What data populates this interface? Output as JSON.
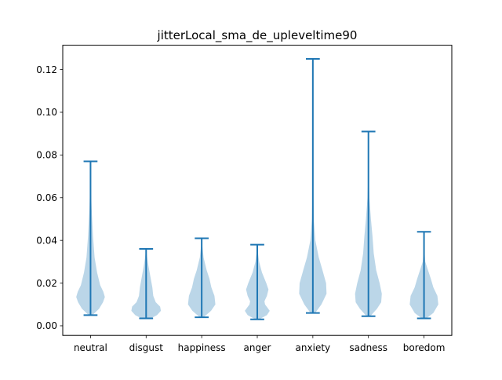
{
  "chart_data": {
    "type": "violin",
    "title": "jitterLocal_sma_de_upleveltime90",
    "xlabel": "",
    "ylabel": "",
    "ylim": [
      -0.0045,
      0.1314
    ],
    "yticks": [
      0.0,
      0.02,
      0.04,
      0.06,
      0.08,
      0.1,
      0.12
    ],
    "ytick_labels": [
      "0.00",
      "0.02",
      "0.04",
      "0.06",
      "0.08",
      "0.10",
      "0.12"
    ],
    "categories": [
      "neutral",
      "disgust",
      "happiness",
      "anger",
      "anxiety",
      "sadness",
      "boredom"
    ],
    "series": [
      {
        "min": 0.005,
        "max": 0.077,
        "halfwidth": 0.28,
        "profile": [
          [
            0.005,
            0.12
          ],
          [
            0.008,
            0.55
          ],
          [
            0.011,
            0.8
          ],
          [
            0.0135,
            0.92
          ],
          [
            0.016,
            0.82
          ],
          [
            0.019,
            0.62
          ],
          [
            0.025,
            0.42
          ],
          [
            0.032,
            0.26
          ],
          [
            0.042,
            0.16
          ],
          [
            0.055,
            0.07
          ],
          [
            0.065,
            0.025
          ],
          [
            0.077,
            0.003
          ]
        ]
      },
      {
        "min": 0.0035,
        "max": 0.036,
        "halfwidth": 0.28,
        "profile": [
          [
            0.0035,
            0.3
          ],
          [
            0.005,
            0.7
          ],
          [
            0.007,
            0.95
          ],
          [
            0.009,
            0.9
          ],
          [
            0.011,
            0.62
          ],
          [
            0.014,
            0.46
          ],
          [
            0.018,
            0.4
          ],
          [
            0.022,
            0.3
          ],
          [
            0.028,
            0.15
          ],
          [
            0.033,
            0.05
          ],
          [
            0.036,
            0.005
          ]
        ]
      },
      {
        "min": 0.004,
        "max": 0.041,
        "halfwidth": 0.28,
        "profile": [
          [
            0.004,
            0.12
          ],
          [
            0.007,
            0.6
          ],
          [
            0.01,
            0.88
          ],
          [
            0.014,
            0.82
          ],
          [
            0.018,
            0.62
          ],
          [
            0.022,
            0.5
          ],
          [
            0.026,
            0.32
          ],
          [
            0.032,
            0.12
          ],
          [
            0.038,
            0.03
          ],
          [
            0.041,
            0.003
          ]
        ]
      },
      {
        "min": 0.003,
        "max": 0.038,
        "halfwidth": 0.28,
        "profile": [
          [
            0.003,
            0.12
          ],
          [
            0.005,
            0.62
          ],
          [
            0.007,
            0.8
          ],
          [
            0.01,
            0.5
          ],
          [
            0.0115,
            0.46
          ],
          [
            0.014,
            0.62
          ],
          [
            0.017,
            0.72
          ],
          [
            0.02,
            0.58
          ],
          [
            0.025,
            0.3
          ],
          [
            0.03,
            0.12
          ],
          [
            0.035,
            0.03
          ],
          [
            0.038,
            0.003
          ]
        ]
      },
      {
        "min": 0.006,
        "max": 0.125,
        "halfwidth": 0.28,
        "profile": [
          [
            0.006,
            0.15
          ],
          [
            0.01,
            0.55
          ],
          [
            0.015,
            0.88
          ],
          [
            0.02,
            0.85
          ],
          [
            0.026,
            0.62
          ],
          [
            0.032,
            0.38
          ],
          [
            0.04,
            0.16
          ],
          [
            0.05,
            0.06
          ],
          [
            0.07,
            0.012
          ],
          [
            0.1,
            0.004
          ],
          [
            0.125,
            0.001
          ]
        ]
      },
      {
        "min": 0.0045,
        "max": 0.091,
        "halfwidth": 0.28,
        "profile": [
          [
            0.0045,
            0.12
          ],
          [
            0.008,
            0.55
          ],
          [
            0.011,
            0.82
          ],
          [
            0.015,
            0.86
          ],
          [
            0.02,
            0.72
          ],
          [
            0.026,
            0.5
          ],
          [
            0.034,
            0.34
          ],
          [
            0.042,
            0.26
          ],
          [
            0.05,
            0.16
          ],
          [
            0.06,
            0.06
          ],
          [
            0.07,
            0.015
          ],
          [
            0.091,
            0.002
          ]
        ]
      },
      {
        "min": 0.0035,
        "max": 0.044,
        "halfwidth": 0.28,
        "profile": [
          [
            0.0035,
            0.15
          ],
          [
            0.006,
            0.6
          ],
          [
            0.01,
            0.92
          ],
          [
            0.014,
            0.86
          ],
          [
            0.018,
            0.6
          ],
          [
            0.022,
            0.44
          ],
          [
            0.026,
            0.26
          ],
          [
            0.03,
            0.08
          ],
          [
            0.035,
            0.03
          ],
          [
            0.044,
            0.004
          ]
        ]
      }
    ],
    "colors": {
      "body": "#1f77b4",
      "line": "#1f77b4",
      "body_opacity": 0.3
    },
    "grid": false,
    "legend": "none"
  }
}
